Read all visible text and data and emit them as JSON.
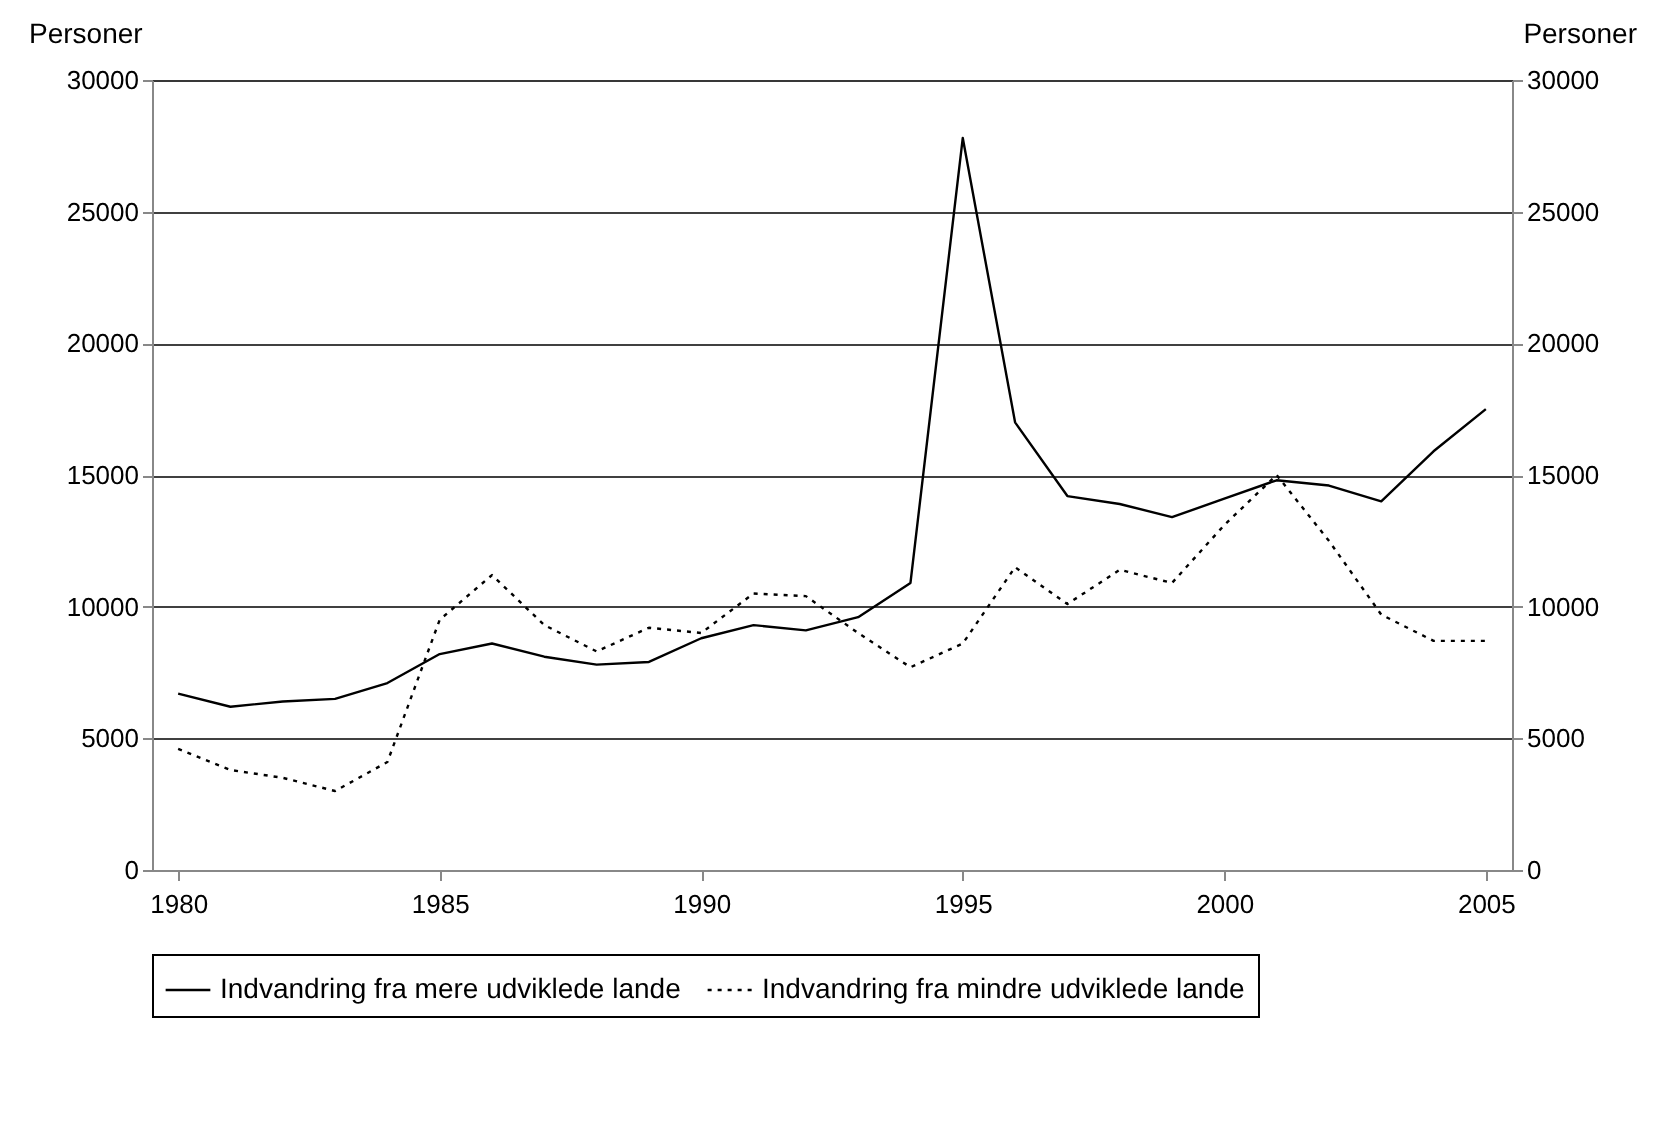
{
  "chart_data": {
    "type": "line",
    "ylabel": "Personer",
    "y2label": "Personer",
    "x": [
      1980,
      1981,
      1982,
      1983,
      1984,
      1985,
      1986,
      1987,
      1988,
      1989,
      1990,
      1991,
      1992,
      1993,
      1994,
      1995,
      1996,
      1997,
      1998,
      1999,
      2000,
      2001,
      2002,
      2003,
      2004,
      2005
    ],
    "series": [
      {
        "name": "Indvandring fra mere udviklede lande",
        "color": "#000000",
        "line_style": "solid",
        "values": [
          6700,
          6200,
          6400,
          6500,
          7100,
          8200,
          8600,
          8100,
          7800,
          7900,
          8800,
          9300,
          9100,
          9600,
          10900,
          27800,
          17000,
          14200,
          13900,
          13400,
          14100,
          14800,
          14600,
          14000,
          15900,
          17500
        ]
      },
      {
        "name": "Indvandring fra mindre udviklede lande",
        "color": "#000000",
        "line_style": "dotted",
        "values": [
          4600,
          3800,
          3500,
          3000,
          4100,
          9500,
          11200,
          9300,
          8300,
          9200,
          9000,
          10500,
          10400,
          9000,
          7700,
          8600,
          11500,
          10100,
          11400,
          10900,
          13100,
          15000,
          12500,
          9700,
          8700,
          8700
        ]
      }
    ],
    "xlim": [
      1979.5,
      2005.5
    ],
    "xticks": [
      1980,
      1985,
      1990,
      1995,
      2000,
      2005
    ],
    "ylim": [
      0,
      30000
    ],
    "yticks": [
      0,
      5000,
      10000,
      15000,
      20000,
      25000,
      30000
    ],
    "y2lim": [
      0,
      30000
    ],
    "y2ticks": [
      0,
      5000,
      10000,
      15000,
      20000,
      25000,
      30000
    ],
    "grid": "y",
    "legend": "bottom",
    "marker": "none"
  }
}
